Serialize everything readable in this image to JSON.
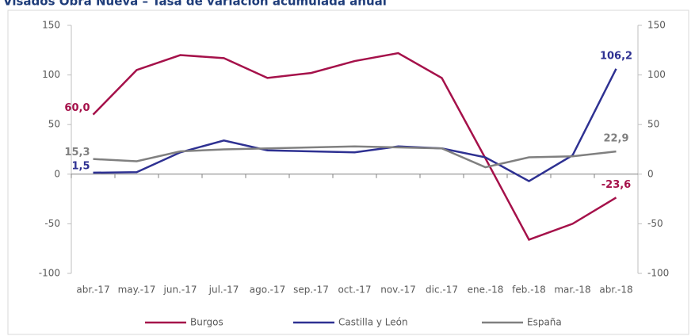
{
  "chart_data": {
    "type": "line",
    "title": "Visados Obra Nueva – Tasa de variación acumulada anual",
    "categories": [
      "abr.-17",
      "may.-17",
      "jun.-17",
      "jul.-17",
      "ago.-17",
      "sep.-17",
      "oct.-17",
      "nov.-17",
      "dic.-17",
      "ene.-18",
      "feb.-18",
      "mar.-18",
      "abr.-18"
    ],
    "series": [
      {
        "name": "Burgos",
        "color": "#a5114a",
        "values": [
          60.0,
          105,
          120,
          117,
          97,
          102,
          114,
          122,
          97,
          16,
          -66,
          -50,
          -23.6
        ],
        "value_labels": [
          "60,0",
          null,
          null,
          null,
          null,
          null,
          null,
          null,
          null,
          null,
          null,
          null,
          "-23,6"
        ]
      },
      {
        "name": "Castilla y León",
        "color": "#2e3192",
        "values": [
          1.5,
          2,
          22,
          34,
          24,
          23,
          22,
          28,
          26,
          17,
          -7,
          19,
          106.2
        ],
        "value_labels": [
          "1,5",
          null,
          null,
          null,
          null,
          null,
          null,
          null,
          null,
          null,
          null,
          null,
          "106,2"
        ]
      },
      {
        "name": "España",
        "color": "#808080",
        "values": [
          15.3,
          13,
          23,
          25,
          26,
          27,
          28,
          27,
          26,
          7,
          17,
          18,
          22.9
        ],
        "value_labels": [
          "15,3",
          null,
          null,
          null,
          null,
          null,
          null,
          null,
          null,
          null,
          null,
          null,
          "22,9"
        ]
      }
    ],
    "ylim": [
      -100,
      150
    ],
    "yticks": [
      -100,
      -50,
      0,
      50,
      100,
      150
    ],
    "y2lim": [
      -100,
      150
    ],
    "y2ticks": [
      -100,
      -50,
      0,
      50,
      100,
      150
    ],
    "legend": "bottom"
  }
}
